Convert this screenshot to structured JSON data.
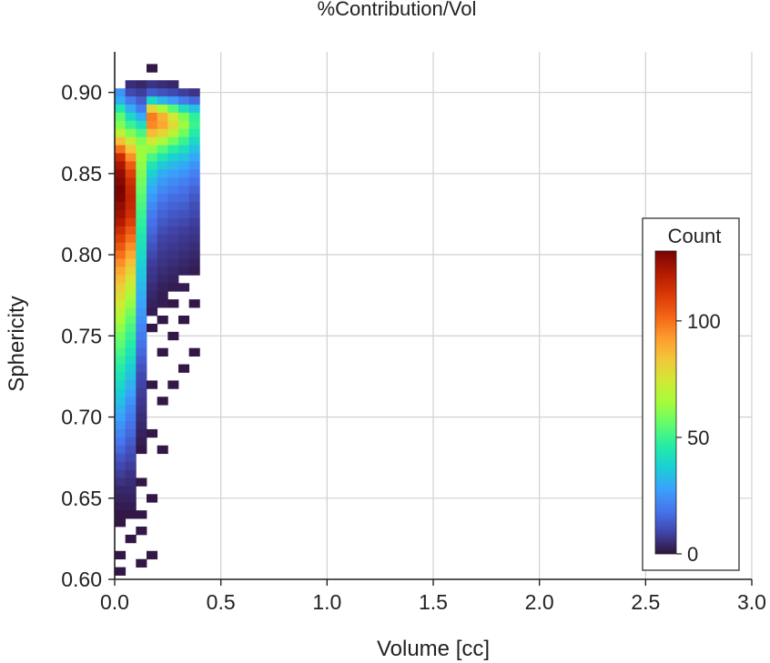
{
  "chart_data": {
    "type": "heatmap",
    "title": "%Contribution/Vol",
    "xlabel": "Volume [cc]",
    "ylabel": "Sphericity",
    "xlim": [
      0.0,
      3.0
    ],
    "ylim": [
      0.6,
      0.925
    ],
    "x_ticks": [
      "0.0",
      "0.5",
      "1.0",
      "1.5",
      "2.0",
      "2.5",
      "3.0"
    ],
    "y_ticks": [
      "0.60",
      "0.65",
      "0.70",
      "0.75",
      "0.80",
      "0.85",
      "0.90"
    ],
    "grid": true,
    "x_bin_width": 0.05,
    "y_bin_width": 0.005,
    "colorbar": {
      "title": "Count",
      "ticks": [
        "0",
        "50",
        "100"
      ],
      "range": [
        0,
        130
      ],
      "colormap": [
        "#30123b",
        "#4145ab",
        "#4675ed",
        "#39a2fc",
        "#1bcfd4",
        "#24eca6",
        "#61fc6c",
        "#a4fc3b",
        "#d1e834",
        "#f3c63a",
        "#fe9b2d",
        "#f36315",
        "#d93806",
        "#b11901",
        "#7a0402"
      ],
      "placement": "lower-right"
    },
    "cells": [
      [
        0.025,
        0.9,
        25
      ],
      [
        0.025,
        0.895,
        30
      ],
      [
        0.025,
        0.89,
        45
      ],
      [
        0.025,
        0.885,
        55
      ],
      [
        0.025,
        0.88,
        60
      ],
      [
        0.025,
        0.875,
        70
      ],
      [
        0.025,
        0.87,
        85
      ],
      [
        0.025,
        0.865,
        100
      ],
      [
        0.025,
        0.86,
        115
      ],
      [
        0.025,
        0.855,
        122
      ],
      [
        0.025,
        0.85,
        126
      ],
      [
        0.025,
        0.845,
        128
      ],
      [
        0.025,
        0.84,
        130
      ],
      [
        0.025,
        0.835,
        129
      ],
      [
        0.025,
        0.83,
        126
      ],
      [
        0.025,
        0.825,
        124
      ],
      [
        0.025,
        0.82,
        120
      ],
      [
        0.025,
        0.815,
        115
      ],
      [
        0.025,
        0.81,
        110
      ],
      [
        0.025,
        0.805,
        105
      ],
      [
        0.025,
        0.8,
        100
      ],
      [
        0.025,
        0.795,
        95
      ],
      [
        0.025,
        0.79,
        90
      ],
      [
        0.025,
        0.785,
        86
      ],
      [
        0.025,
        0.78,
        82
      ],
      [
        0.025,
        0.775,
        78
      ],
      [
        0.025,
        0.77,
        74
      ],
      [
        0.025,
        0.765,
        70
      ],
      [
        0.025,
        0.76,
        66
      ],
      [
        0.025,
        0.755,
        62
      ],
      [
        0.025,
        0.75,
        58
      ],
      [
        0.025,
        0.745,
        55
      ],
      [
        0.025,
        0.74,
        52
      ],
      [
        0.025,
        0.735,
        49
      ],
      [
        0.025,
        0.73,
        46
      ],
      [
        0.025,
        0.725,
        43
      ],
      [
        0.025,
        0.72,
        40
      ],
      [
        0.025,
        0.715,
        37
      ],
      [
        0.025,
        0.71,
        34
      ],
      [
        0.025,
        0.705,
        31
      ],
      [
        0.025,
        0.7,
        28
      ],
      [
        0.025,
        0.695,
        25
      ],
      [
        0.025,
        0.69,
        22
      ],
      [
        0.025,
        0.685,
        19
      ],
      [
        0.025,
        0.68,
        16
      ],
      [
        0.025,
        0.675,
        13
      ],
      [
        0.025,
        0.67,
        10
      ],
      [
        0.025,
        0.665,
        8
      ],
      [
        0.025,
        0.66,
        6
      ],
      [
        0.025,
        0.655,
        4
      ],
      [
        0.025,
        0.65,
        3
      ],
      [
        0.025,
        0.645,
        2
      ],
      [
        0.025,
        0.64,
        1
      ],
      [
        0.025,
        0.635,
        1
      ],
      [
        0.025,
        0.615,
        1
      ],
      [
        0.025,
        0.605,
        1
      ],
      [
        0.075,
        0.905,
        5
      ],
      [
        0.075,
        0.9,
        10
      ],
      [
        0.075,
        0.895,
        20
      ],
      [
        0.075,
        0.89,
        30
      ],
      [
        0.075,
        0.885,
        40
      ],
      [
        0.075,
        0.88,
        50
      ],
      [
        0.075,
        0.875,
        60
      ],
      [
        0.075,
        0.87,
        72
      ],
      [
        0.075,
        0.865,
        84
      ],
      [
        0.075,
        0.86,
        95
      ],
      [
        0.075,
        0.855,
        104
      ],
      [
        0.075,
        0.85,
        110
      ],
      [
        0.075,
        0.845,
        114
      ],
      [
        0.075,
        0.84,
        116
      ],
      [
        0.075,
        0.835,
        117
      ],
      [
        0.075,
        0.83,
        116
      ],
      [
        0.075,
        0.825,
        114
      ],
      [
        0.075,
        0.82,
        110
      ],
      [
        0.075,
        0.815,
        105
      ],
      [
        0.075,
        0.81,
        100
      ],
      [
        0.075,
        0.805,
        95
      ],
      [
        0.075,
        0.8,
        90
      ],
      [
        0.075,
        0.795,
        85
      ],
      [
        0.075,
        0.79,
        80
      ],
      [
        0.075,
        0.785,
        75
      ],
      [
        0.075,
        0.78,
        71
      ],
      [
        0.075,
        0.775,
        67
      ],
      [
        0.075,
        0.77,
        63
      ],
      [
        0.075,
        0.765,
        59
      ],
      [
        0.075,
        0.76,
        55
      ],
      [
        0.075,
        0.755,
        52
      ],
      [
        0.075,
        0.75,
        49
      ],
      [
        0.075,
        0.745,
        46
      ],
      [
        0.075,
        0.74,
        43
      ],
      [
        0.075,
        0.735,
        40
      ],
      [
        0.075,
        0.73,
        37
      ],
      [
        0.075,
        0.725,
        34
      ],
      [
        0.075,
        0.72,
        31
      ],
      [
        0.075,
        0.715,
        28
      ],
      [
        0.075,
        0.71,
        25
      ],
      [
        0.075,
        0.705,
        22
      ],
      [
        0.075,
        0.7,
        20
      ],
      [
        0.075,
        0.695,
        18
      ],
      [
        0.075,
        0.69,
        16
      ],
      [
        0.075,
        0.685,
        14
      ],
      [
        0.075,
        0.68,
        12
      ],
      [
        0.075,
        0.675,
        10
      ],
      [
        0.075,
        0.67,
        8
      ],
      [
        0.075,
        0.665,
        6
      ],
      [
        0.075,
        0.66,
        5
      ],
      [
        0.075,
        0.655,
        4
      ],
      [
        0.075,
        0.65,
        3
      ],
      [
        0.075,
        0.645,
        2
      ],
      [
        0.075,
        0.64,
        1
      ],
      [
        0.075,
        0.625,
        1
      ],
      [
        0.125,
        0.905,
        4
      ],
      [
        0.125,
        0.9,
        8
      ],
      [
        0.125,
        0.895,
        14
      ],
      [
        0.125,
        0.89,
        20
      ],
      [
        0.125,
        0.885,
        30
      ],
      [
        0.125,
        0.88,
        42
      ],
      [
        0.125,
        0.875,
        52
      ],
      [
        0.125,
        0.87,
        60
      ],
      [
        0.125,
        0.865,
        64
      ],
      [
        0.125,
        0.86,
        64
      ],
      [
        0.125,
        0.855,
        62
      ],
      [
        0.125,
        0.85,
        60
      ],
      [
        0.125,
        0.845,
        58
      ],
      [
        0.125,
        0.84,
        56
      ],
      [
        0.125,
        0.835,
        54
      ],
      [
        0.125,
        0.83,
        52
      ],
      [
        0.125,
        0.825,
        50
      ],
      [
        0.125,
        0.82,
        48
      ],
      [
        0.125,
        0.815,
        46
      ],
      [
        0.125,
        0.81,
        44
      ],
      [
        0.125,
        0.805,
        42
      ],
      [
        0.125,
        0.8,
        40
      ],
      [
        0.125,
        0.795,
        38
      ],
      [
        0.125,
        0.79,
        36
      ],
      [
        0.125,
        0.785,
        34
      ],
      [
        0.125,
        0.78,
        32
      ],
      [
        0.125,
        0.775,
        30
      ],
      [
        0.125,
        0.77,
        28
      ],
      [
        0.125,
        0.765,
        26
      ],
      [
        0.125,
        0.76,
        24
      ],
      [
        0.125,
        0.755,
        22
      ],
      [
        0.125,
        0.75,
        20
      ],
      [
        0.125,
        0.745,
        18
      ],
      [
        0.125,
        0.74,
        16
      ],
      [
        0.125,
        0.735,
        14
      ],
      [
        0.125,
        0.73,
        12
      ],
      [
        0.125,
        0.725,
        10
      ],
      [
        0.125,
        0.72,
        9
      ],
      [
        0.125,
        0.715,
        8
      ],
      [
        0.125,
        0.71,
        7
      ],
      [
        0.125,
        0.705,
        6
      ],
      [
        0.125,
        0.7,
        5
      ],
      [
        0.125,
        0.695,
        4
      ],
      [
        0.125,
        0.69,
        3
      ],
      [
        0.125,
        0.685,
        2
      ],
      [
        0.125,
        0.68,
        1
      ],
      [
        0.125,
        0.66,
        1
      ],
      [
        0.125,
        0.64,
        1
      ],
      [
        0.125,
        0.63,
        1
      ],
      [
        0.125,
        0.61,
        1
      ],
      [
        0.175,
        0.915,
        1
      ],
      [
        0.175,
        0.905,
        6
      ],
      [
        0.175,
        0.9,
        14
      ],
      [
        0.175,
        0.895,
        40
      ],
      [
        0.175,
        0.89,
        80
      ],
      [
        0.175,
        0.885,
        98
      ],
      [
        0.175,
        0.88,
        96
      ],
      [
        0.175,
        0.875,
        86
      ],
      [
        0.175,
        0.87,
        74
      ],
      [
        0.175,
        0.865,
        62
      ],
      [
        0.175,
        0.86,
        52
      ],
      [
        0.175,
        0.855,
        44
      ],
      [
        0.175,
        0.85,
        38
      ],
      [
        0.175,
        0.845,
        33
      ],
      [
        0.175,
        0.84,
        29
      ],
      [
        0.175,
        0.835,
        26
      ],
      [
        0.175,
        0.83,
        23
      ],
      [
        0.175,
        0.825,
        20
      ],
      [
        0.175,
        0.82,
        18
      ],
      [
        0.175,
        0.815,
        16
      ],
      [
        0.175,
        0.81,
        14
      ],
      [
        0.175,
        0.805,
        12
      ],
      [
        0.175,
        0.8,
        10
      ],
      [
        0.175,
        0.795,
        8
      ],
      [
        0.175,
        0.79,
        7
      ],
      [
        0.175,
        0.785,
        6
      ],
      [
        0.175,
        0.78,
        5
      ],
      [
        0.175,
        0.775,
        4
      ],
      [
        0.175,
        0.77,
        3
      ],
      [
        0.175,
        0.765,
        2
      ],
      [
        0.175,
        0.755,
        1
      ],
      [
        0.175,
        0.72,
        1
      ],
      [
        0.175,
        0.69,
        1
      ],
      [
        0.175,
        0.65,
        1
      ],
      [
        0.175,
        0.615,
        1
      ],
      [
        0.225,
        0.905,
        5
      ],
      [
        0.225,
        0.9,
        12
      ],
      [
        0.225,
        0.895,
        32
      ],
      [
        0.225,
        0.89,
        66
      ],
      [
        0.225,
        0.885,
        88
      ],
      [
        0.225,
        0.88,
        90
      ],
      [
        0.225,
        0.875,
        80
      ],
      [
        0.225,
        0.87,
        66
      ],
      [
        0.225,
        0.865,
        54
      ],
      [
        0.225,
        0.86,
        44
      ],
      [
        0.225,
        0.855,
        36
      ],
      [
        0.225,
        0.85,
        30
      ],
      [
        0.225,
        0.845,
        26
      ],
      [
        0.225,
        0.84,
        23
      ],
      [
        0.225,
        0.835,
        20
      ],
      [
        0.225,
        0.83,
        17
      ],
      [
        0.225,
        0.825,
        15
      ],
      [
        0.225,
        0.82,
        13
      ],
      [
        0.225,
        0.815,
        11
      ],
      [
        0.225,
        0.81,
        9
      ],
      [
        0.225,
        0.805,
        8
      ],
      [
        0.225,
        0.8,
        7
      ],
      [
        0.225,
        0.795,
        6
      ],
      [
        0.225,
        0.79,
        5
      ],
      [
        0.225,
        0.785,
        4
      ],
      [
        0.225,
        0.78,
        3
      ],
      [
        0.225,
        0.775,
        2
      ],
      [
        0.225,
        0.77,
        2
      ],
      [
        0.225,
        0.76,
        1
      ],
      [
        0.225,
        0.74,
        1
      ],
      [
        0.225,
        0.71,
        1
      ],
      [
        0.225,
        0.68,
        1
      ],
      [
        0.275,
        0.905,
        4
      ],
      [
        0.275,
        0.9,
        10
      ],
      [
        0.275,
        0.895,
        26
      ],
      [
        0.275,
        0.89,
        54
      ],
      [
        0.275,
        0.885,
        74
      ],
      [
        0.275,
        0.88,
        78
      ],
      [
        0.275,
        0.875,
        70
      ],
      [
        0.275,
        0.87,
        58
      ],
      [
        0.275,
        0.865,
        47
      ],
      [
        0.275,
        0.86,
        38
      ],
      [
        0.275,
        0.855,
        32
      ],
      [
        0.275,
        0.85,
        27
      ],
      [
        0.275,
        0.845,
        23
      ],
      [
        0.275,
        0.84,
        20
      ],
      [
        0.275,
        0.835,
        17
      ],
      [
        0.275,
        0.83,
        15
      ],
      [
        0.275,
        0.825,
        13
      ],
      [
        0.275,
        0.82,
        11
      ],
      [
        0.275,
        0.815,
        9
      ],
      [
        0.275,
        0.81,
        8
      ],
      [
        0.275,
        0.805,
        7
      ],
      [
        0.275,
        0.8,
        6
      ],
      [
        0.275,
        0.795,
        5
      ],
      [
        0.275,
        0.79,
        4
      ],
      [
        0.275,
        0.785,
        3
      ],
      [
        0.275,
        0.78,
        2
      ],
      [
        0.275,
        0.77,
        1
      ],
      [
        0.275,
        0.75,
        1
      ],
      [
        0.275,
        0.72,
        1
      ],
      [
        0.325,
        0.9,
        8
      ],
      [
        0.325,
        0.895,
        20
      ],
      [
        0.325,
        0.89,
        42
      ],
      [
        0.325,
        0.885,
        60
      ],
      [
        0.325,
        0.88,
        64
      ],
      [
        0.325,
        0.875,
        58
      ],
      [
        0.325,
        0.87,
        50
      ],
      [
        0.325,
        0.865,
        42
      ],
      [
        0.325,
        0.86,
        35
      ],
      [
        0.325,
        0.855,
        29
      ],
      [
        0.325,
        0.85,
        25
      ],
      [
        0.325,
        0.845,
        21
      ],
      [
        0.325,
        0.84,
        18
      ],
      [
        0.325,
        0.835,
        16
      ],
      [
        0.325,
        0.83,
        14
      ],
      [
        0.325,
        0.825,
        12
      ],
      [
        0.325,
        0.82,
        10
      ],
      [
        0.325,
        0.815,
        8
      ],
      [
        0.325,
        0.81,
        7
      ],
      [
        0.325,
        0.805,
        6
      ],
      [
        0.325,
        0.8,
        5
      ],
      [
        0.325,
        0.795,
        4
      ],
      [
        0.325,
        0.79,
        3
      ],
      [
        0.325,
        0.78,
        2
      ],
      [
        0.325,
        0.76,
        1
      ],
      [
        0.325,
        0.73,
        1
      ],
      [
        0.375,
        0.9,
        6
      ],
      [
        0.375,
        0.895,
        16
      ],
      [
        0.375,
        0.89,
        34
      ],
      [
        0.375,
        0.885,
        48
      ],
      [
        0.375,
        0.88,
        50
      ],
      [
        0.375,
        0.875,
        46
      ],
      [
        0.375,
        0.87,
        40
      ],
      [
        0.375,
        0.865,
        34
      ],
      [
        0.375,
        0.86,
        29
      ],
      [
        0.375,
        0.855,
        25
      ],
      [
        0.375,
        0.85,
        21
      ],
      [
        0.375,
        0.845,
        18
      ],
      [
        0.375,
        0.84,
        15
      ],
      [
        0.375,
        0.835,
        13
      ],
      [
        0.375,
        0.83,
        11
      ],
      [
        0.375,
        0.825,
        10
      ],
      [
        0.375,
        0.82,
        8
      ],
      [
        0.375,
        0.815,
        7
      ],
      [
        0.375,
        0.81,
        6
      ],
      [
        0.375,
        0.805,
        5
      ],
      [
        0.375,
        0.8,
        4
      ],
      [
        0.375,
        0.795,
        3
      ],
      [
        0.375,
        0.79,
        2
      ],
      [
        0.375,
        0.77,
        1
      ],
      [
        0.375,
        0.74,
        1
      ]
    ]
  }
}
